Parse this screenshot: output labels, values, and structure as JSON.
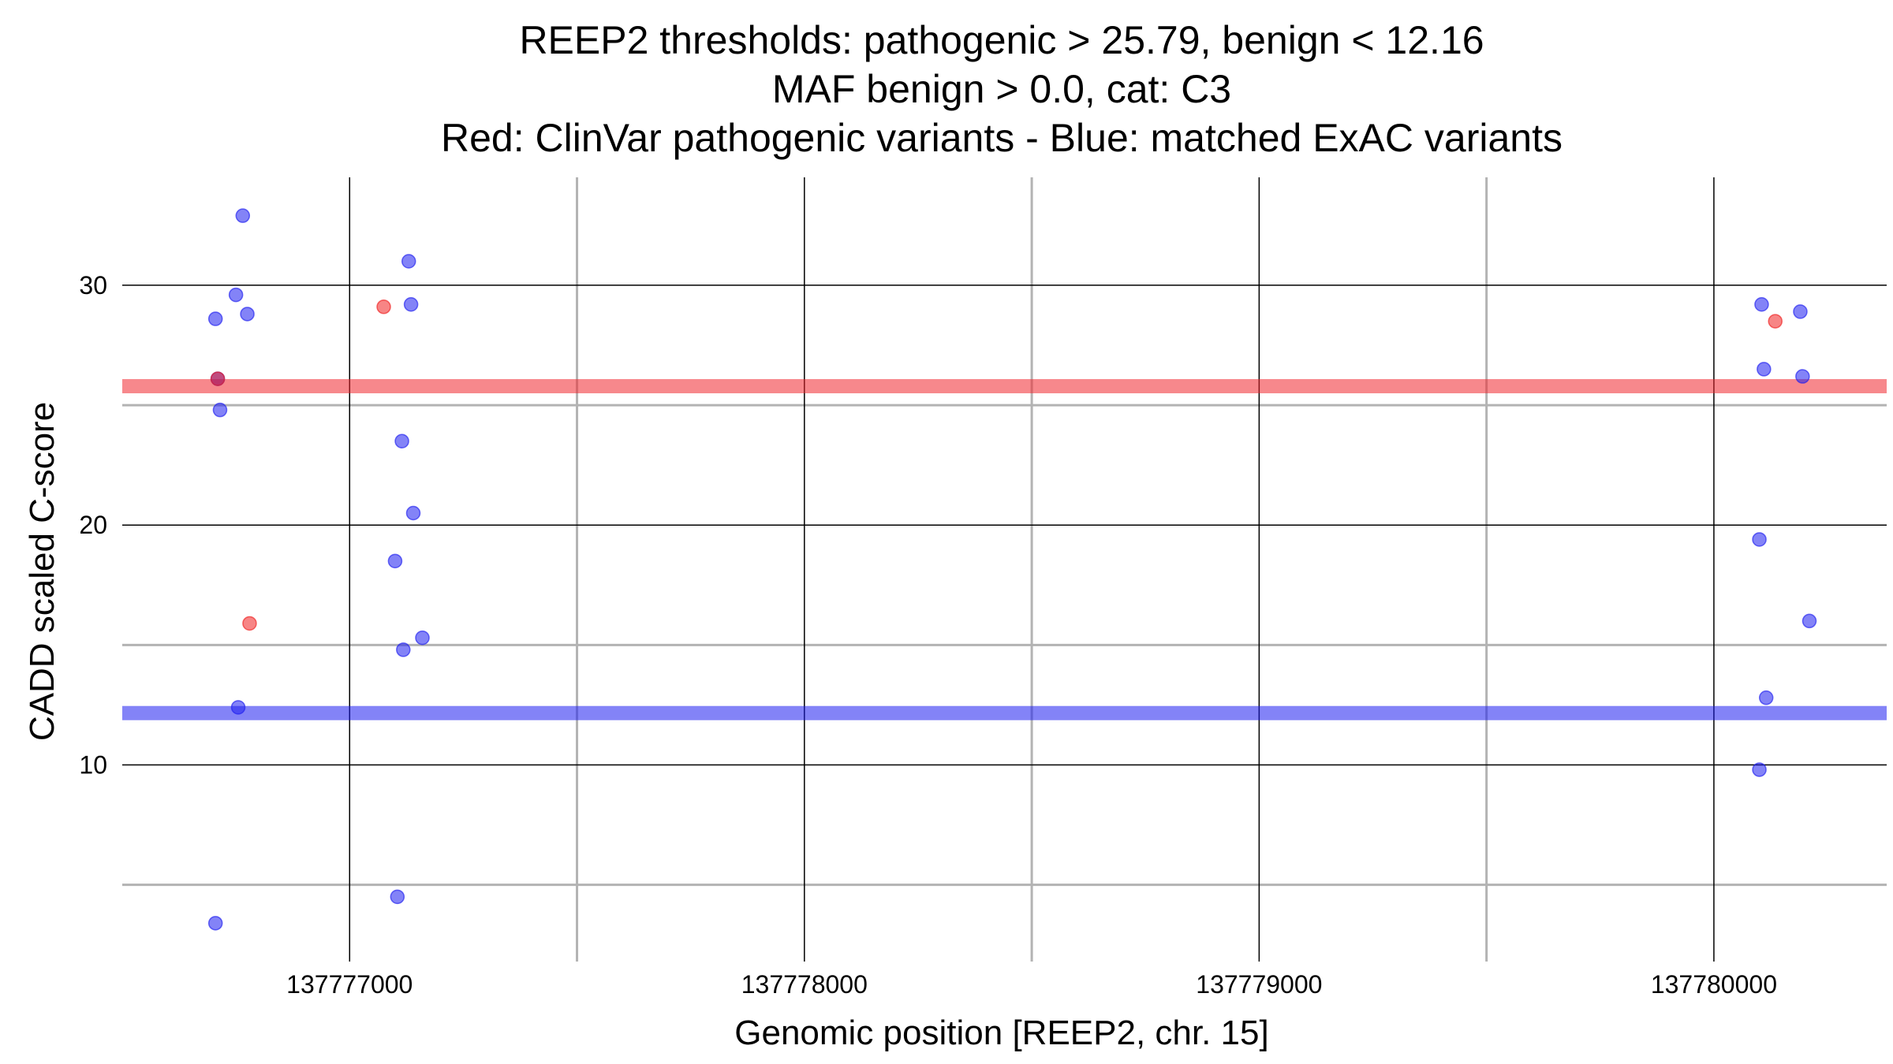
{
  "chart_data": {
    "type": "scatter",
    "title_lines": [
      "REEP2 thresholds: pathogenic > 25.79, benign < 12.16",
      "MAF benign > 0.0, cat: C3",
      "Red: ClinVar pathogenic variants - Blue: matched ExAC variants"
    ],
    "xlabel": "Genomic position [REEP2, chr. 15]",
    "ylabel": "CADD scaled C-score",
    "xlim": [
      137776500,
      137780380
    ],
    "ylim": [
      1.8,
      34.5
    ],
    "x_major_ticks": [
      137777000,
      137778000,
      137779000,
      137780000
    ],
    "x_minor_lines": [
      137777500,
      137778500,
      137779500
    ],
    "y_major_ticks": [
      10,
      20,
      30
    ],
    "y_minor_lines": [
      5,
      15,
      25
    ],
    "x_tick_labels": [
      "137777000",
      "137778000",
      "137779000",
      "137780000"
    ],
    "y_tick_labels": [
      "10",
      "20",
      "30"
    ],
    "grid": true,
    "thresholds": [
      {
        "label": "pathogenic",
        "value": 25.79,
        "color": "#f0262e"
      },
      {
        "label": "benign",
        "value": 12.16,
        "color": "#1e1ef0"
      }
    ],
    "series": [
      {
        "color": "#f02020",
        "points": [
          {
            "x": 137776710,
            "y": 26.1
          },
          {
            "x": 137776780,
            "y": 15.9
          },
          {
            "x": 137777075,
            "y": 29.1
          },
          {
            "x": 137780135,
            "y": 28.5
          }
        ]
      },
      {
        "color": "#1e1ef0",
        "points": [
          {
            "x": 137776705,
            "y": 3.4
          },
          {
            "x": 137776705,
            "y": 28.6
          },
          {
            "x": 137776710,
            "y": 26.1
          },
          {
            "x": 137776715,
            "y": 24.8
          },
          {
            "x": 137776750,
            "y": 29.6
          },
          {
            "x": 137776755,
            "y": 12.4
          },
          {
            "x": 137776765,
            "y": 32.9
          },
          {
            "x": 137776775,
            "y": 28.8
          },
          {
            "x": 137777100,
            "y": 18.5
          },
          {
            "x": 137777105,
            "y": 4.5
          },
          {
            "x": 137777115,
            "y": 23.5
          },
          {
            "x": 137777118,
            "y": 14.8
          },
          {
            "x": 137777130,
            "y": 31.0
          },
          {
            "x": 137777135,
            "y": 29.2
          },
          {
            "x": 137777140,
            "y": 20.5
          },
          {
            "x": 137777160,
            "y": 15.3
          },
          {
            "x": 137780100,
            "y": 9.8
          },
          {
            "x": 137780100,
            "y": 19.4
          },
          {
            "x": 137780105,
            "y": 29.2
          },
          {
            "x": 137780110,
            "y": 26.5
          },
          {
            "x": 137780115,
            "y": 12.8
          },
          {
            "x": 137780190,
            "y": 28.9
          },
          {
            "x": 137780195,
            "y": 26.2
          },
          {
            "x": 137780210,
            "y": 16.0
          }
        ]
      }
    ]
  }
}
